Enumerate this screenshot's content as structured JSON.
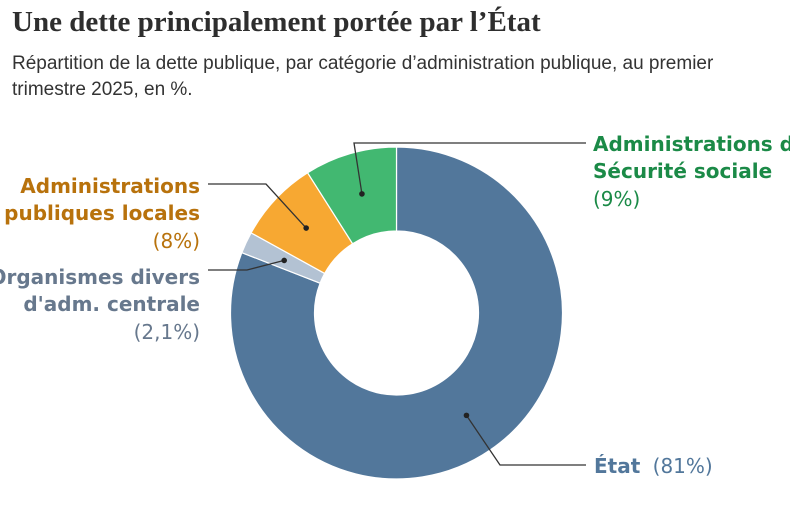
{
  "header": {
    "title": "Une dette principalement portée par l’État",
    "subtitle": "Répartition de la dette publique, par catégorie d’administration publique, au premier trimestre 2025, en %."
  },
  "chart_data": {
    "type": "pie",
    "donut": true,
    "title": "Une dette principalement portée par l’État",
    "subtitle": "Répartition de la dette publique, par catégorie d’administration publique, au premier trimestre 2025, en %.",
    "unit": "%",
    "legend": "none",
    "slices": [
      {
        "key": "etat",
        "label_lines": [
          "État"
        ],
        "value": 81,
        "value_label": "(81%)",
        "color": "#52779b",
        "label_color": "#52779b",
        "value_color": "#52779b"
      },
      {
        "key": "odac",
        "label_lines": [
          "Organismes divers",
          "d'adm. centrale"
        ],
        "value": 2.1,
        "value_label": "(2,1%)",
        "color": "#b3c2d3",
        "label_color": "#67788d",
        "value_color": "#67788d"
      },
      {
        "key": "apul",
        "label_lines": [
          "Administrations",
          "publiques locales"
        ],
        "value": 8,
        "value_label": "(8%)",
        "color": "#f7a832",
        "label_color": "#b8720c",
        "value_color": "#b8720c"
      },
      {
        "key": "asso",
        "label_lines": [
          "Administrations de",
          "Sécurité sociale"
        ],
        "value": 9,
        "value_label": "(9%)",
        "color": "#42b871",
        "label_color": "#1b8a47",
        "value_color": "#1b8a47"
      }
    ]
  }
}
